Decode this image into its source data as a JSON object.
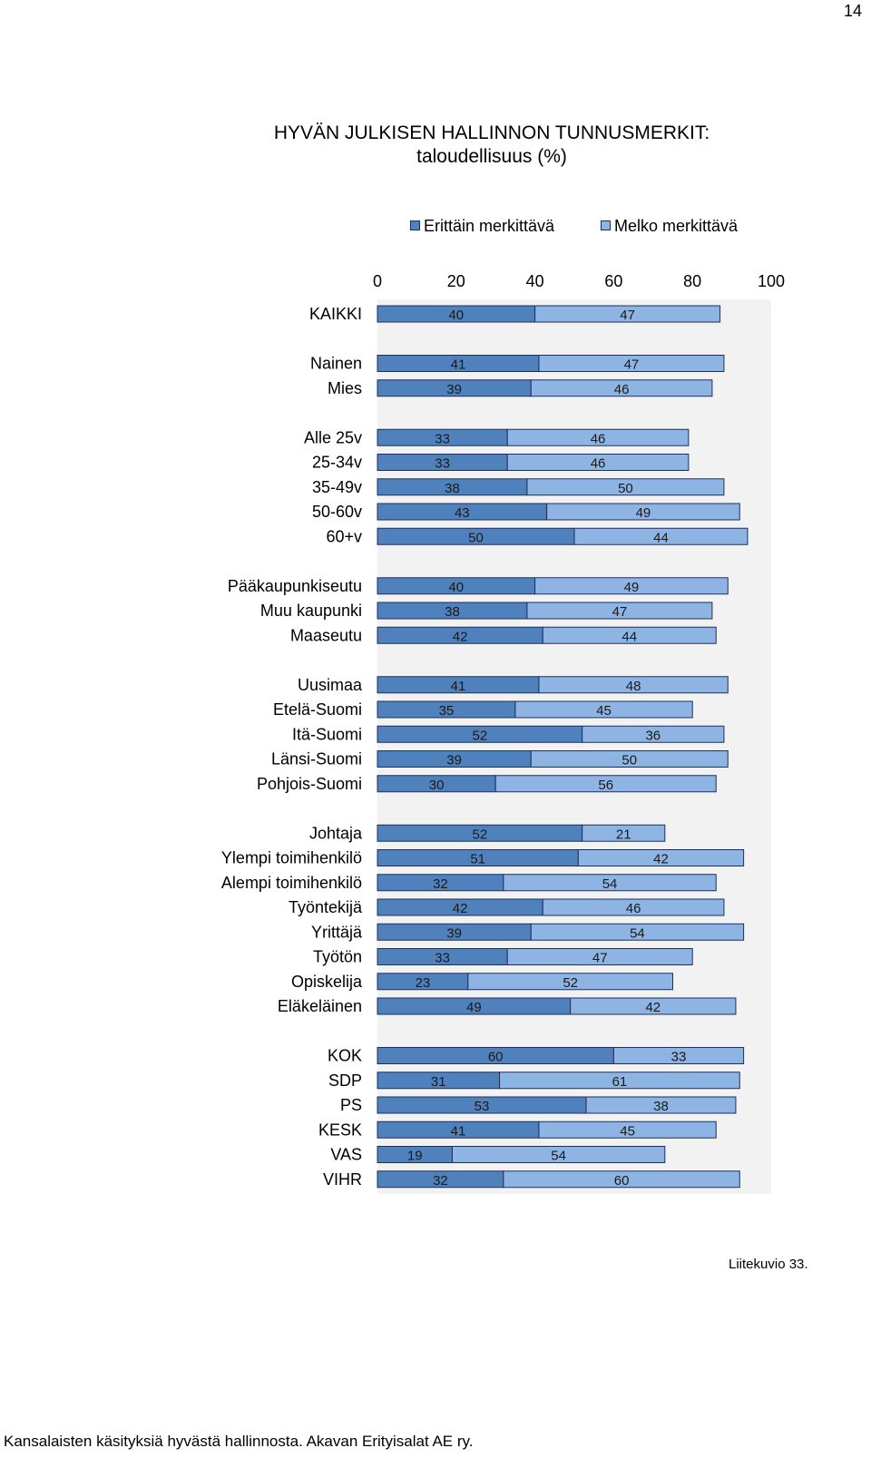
{
  "page_number": "14",
  "caption": "Liitekuvio 33.",
  "footer": "Kansalaisten käsityksiä hyvästä hallinnosta. Akavan Erityisalat AE ry.",
  "colors": {
    "series1": "#4f81bd",
    "series2": "#8eb4e3",
    "plot_bg": "#f2f2f2",
    "bar_edge": "#1f2f5c"
  },
  "chart_data": {
    "type": "bar",
    "orientation": "horizontal",
    "stacked": true,
    "title": "HYVÄN JULKISEN HALLINNON TUNNUSMERKIT:",
    "subtitle": "taloudellisuus (%)",
    "xlim": [
      0,
      100
    ],
    "xticks": [
      "0",
      "20",
      "40",
      "60",
      "80",
      "100"
    ],
    "legend_position": "top",
    "series": [
      {
        "name": "Erittäin merkittävä",
        "values": [
          40,
          41,
          39,
          33,
          33,
          38,
          43,
          50,
          40,
          38,
          42,
          41,
          35,
          52,
          39,
          30,
          52,
          51,
          32,
          42,
          39,
          33,
          23,
          49,
          60,
          31,
          53,
          41,
          19,
          32
        ]
      },
      {
        "name": "Melko merkittävä",
        "values": [
          47,
          47,
          46,
          46,
          46,
          50,
          49,
          44,
          49,
          47,
          44,
          48,
          45,
          36,
          50,
          56,
          21,
          42,
          54,
          46,
          54,
          47,
          52,
          42,
          33,
          61,
          38,
          45,
          54,
          60
        ]
      }
    ],
    "categories": [
      "KAIKKI",
      "Nainen",
      "Mies",
      "Alle 25v",
      "25-34v",
      "35-49v",
      "50-60v",
      "60+v",
      "Pääkaupunkiseutu",
      "Muu kaupunki",
      "Maaseutu",
      "Uusimaa",
      "Etelä-Suomi",
      "Itä-Suomi",
      "Länsi-Suomi",
      "Pohjois-Suomi",
      "Johtaja",
      "Ylempi toimihenkilö",
      "Alempi toimihenkilö",
      "Työntekijä",
      "Yrittäjä",
      "Työtön",
      "Opiskelija",
      "Eläkeläinen",
      "KOK",
      "SDP",
      "PS",
      "KESK",
      "VAS",
      "VIHR"
    ],
    "groups": [
      1,
      2,
      5,
      3,
      5,
      8,
      6
    ]
  }
}
